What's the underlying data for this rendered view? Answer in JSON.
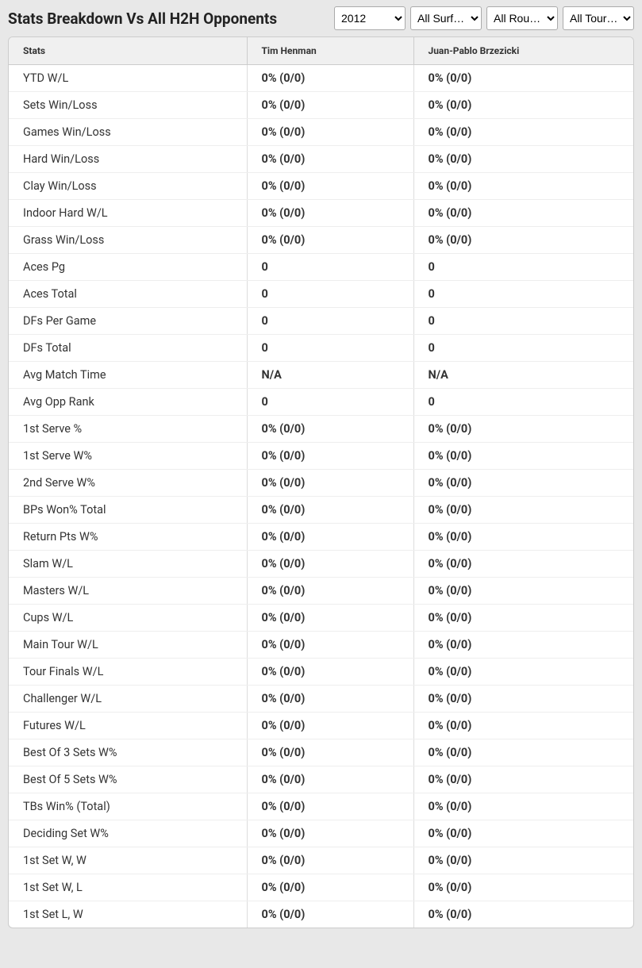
{
  "title": "Stats Breakdown Vs All H2H Opponents",
  "filters": {
    "year": {
      "selected": "2012",
      "options": [
        "2012"
      ]
    },
    "surface": {
      "selected": "All Surf…",
      "options": [
        "All Surf…"
      ]
    },
    "round": {
      "selected": "All Rou…",
      "options": [
        "All Rou…"
      ]
    },
    "tour": {
      "selected": "All Tour…",
      "options": [
        "All Tour…"
      ]
    }
  },
  "columns": {
    "stats": "Stats",
    "player1": "Tim Henman",
    "player2": "Juan-Pablo Brzezicki"
  },
  "rows": [
    {
      "stat": "YTD W/L",
      "p1": "0% (0/0)",
      "p2": "0% (0/0)"
    },
    {
      "stat": "Sets Win/Loss",
      "p1": "0% (0/0)",
      "p2": "0% (0/0)"
    },
    {
      "stat": "Games Win/Loss",
      "p1": "0% (0/0)",
      "p2": "0% (0/0)"
    },
    {
      "stat": "Hard Win/Loss",
      "p1": "0% (0/0)",
      "p2": "0% (0/0)"
    },
    {
      "stat": "Clay Win/Loss",
      "p1": "0% (0/0)",
      "p2": "0% (0/0)"
    },
    {
      "stat": "Indoor Hard W/L",
      "p1": "0% (0/0)",
      "p2": "0% (0/0)"
    },
    {
      "stat": "Grass Win/Loss",
      "p1": "0% (0/0)",
      "p2": "0% (0/0)"
    },
    {
      "stat": "Aces Pg",
      "p1": "0",
      "p2": "0"
    },
    {
      "stat": "Aces Total",
      "p1": "0",
      "p2": "0"
    },
    {
      "stat": "DFs Per Game",
      "p1": "0",
      "p2": "0"
    },
    {
      "stat": "DFs Total",
      "p1": "0",
      "p2": "0"
    },
    {
      "stat": "Avg Match Time",
      "p1": "N/A",
      "p2": "N/A"
    },
    {
      "stat": "Avg Opp Rank",
      "p1": "0",
      "p2": "0"
    },
    {
      "stat": "1st Serve %",
      "p1": "0% (0/0)",
      "p2": "0% (0/0)"
    },
    {
      "stat": "1st Serve W%",
      "p1": "0% (0/0)",
      "p2": "0% (0/0)"
    },
    {
      "stat": "2nd Serve W%",
      "p1": "0% (0/0)",
      "p2": "0% (0/0)"
    },
    {
      "stat": "BPs Won% Total",
      "p1": "0% (0/0)",
      "p2": "0% (0/0)"
    },
    {
      "stat": "Return Pts W%",
      "p1": "0% (0/0)",
      "p2": "0% (0/0)"
    },
    {
      "stat": "Slam W/L",
      "p1": "0% (0/0)",
      "p2": "0% (0/0)"
    },
    {
      "stat": "Masters W/L",
      "p1": "0% (0/0)",
      "p2": "0% (0/0)"
    },
    {
      "stat": "Cups W/L",
      "p1": "0% (0/0)",
      "p2": "0% (0/0)"
    },
    {
      "stat": "Main Tour W/L",
      "p1": "0% (0/0)",
      "p2": "0% (0/0)"
    },
    {
      "stat": "Tour Finals W/L",
      "p1": "0% (0/0)",
      "p2": "0% (0/0)"
    },
    {
      "stat": "Challenger W/L",
      "p1": "0% (0/0)",
      "p2": "0% (0/0)"
    },
    {
      "stat": "Futures W/L",
      "p1": "0% (0/0)",
      "p2": "0% (0/0)"
    },
    {
      "stat": "Best Of 3 Sets W%",
      "p1": "0% (0/0)",
      "p2": "0% (0/0)"
    },
    {
      "stat": "Best Of 5 Sets W%",
      "p1": "0% (0/0)",
      "p2": "0% (0/0)"
    },
    {
      "stat": "TBs Win% (Total)",
      "p1": "0% (0/0)",
      "p2": "0% (0/0)"
    },
    {
      "stat": "Deciding Set W%",
      "p1": "0% (0/0)",
      "p2": "0% (0/0)"
    },
    {
      "stat": "1st Set W, W",
      "p1": "0% (0/0)",
      "p2": "0% (0/0)"
    },
    {
      "stat": "1st Set W, L",
      "p1": "0% (0/0)",
      "p2": "0% (0/0)"
    },
    {
      "stat": "1st Set L, W",
      "p1": "0% (0/0)",
      "p2": "0% (0/0)"
    }
  ],
  "styling": {
    "header_bg": "#e8e8e8",
    "table_bg": "#ffffff",
    "thead_bg": "#f0f0f0",
    "border_color": "#cccccc",
    "row_border": "#eeeeee",
    "text_color": "#333333",
    "title_fontsize": 19,
    "th_fontsize": 12,
    "td_fontsize": 14.5
  }
}
